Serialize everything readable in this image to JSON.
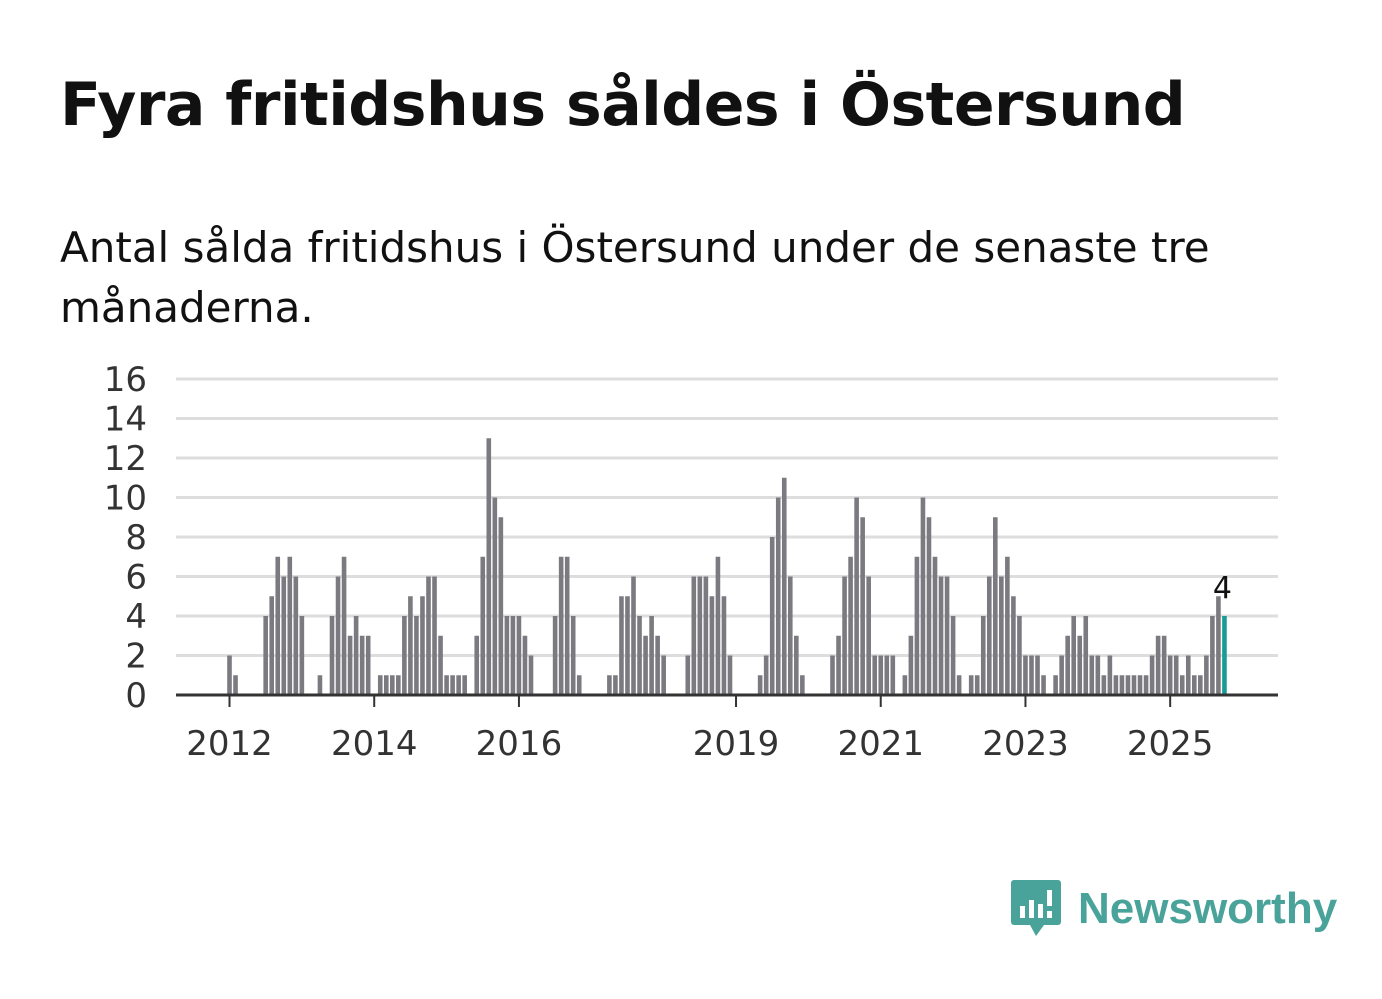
{
  "title": "Fyra fritidshus såldes i Östersund",
  "subtitle": "Antal sålda fritidshus i Östersund under de senaste tre månaderna.",
  "brand": {
    "name": "Newsworthy",
    "color": "#4aa39a"
  },
  "colors": {
    "bar": "#7b7a80",
    "highlight": "#1a9a94",
    "grid": "#dddddd",
    "axis": "#333333"
  },
  "chart_data": {
    "type": "bar",
    "title": "Fyra fritidshus såldes i Östersund",
    "xlabel": "",
    "ylabel": "",
    "ylim": [
      0,
      16
    ],
    "yticks": [
      "0",
      "2",
      "4",
      "6",
      "8",
      "10",
      "12",
      "14",
      "16"
    ],
    "grid": true,
    "start": {
      "year": 2011,
      "month": 3
    },
    "xticks": [
      {
        "label": "2012",
        "index": 9
      },
      {
        "label": "2014",
        "index": 33
      },
      {
        "label": "2016",
        "index": 57
      },
      {
        "label": "2019",
        "index": 93
      },
      {
        "label": "2021",
        "index": 117
      },
      {
        "label": "2023",
        "index": 141
      },
      {
        "label": "2025",
        "index": 165
      }
    ],
    "annotation": {
      "text": "4",
      "index": 174
    },
    "values": [
      0,
      0,
      0,
      0,
      0,
      0,
      0,
      0,
      0,
      2,
      1,
      0,
      0,
      0,
      0,
      4,
      5,
      7,
      6,
      7,
      6,
      4,
      0,
      0,
      1,
      0,
      4,
      6,
      7,
      3,
      4,
      3,
      3,
      0,
      1,
      1,
      1,
      1,
      4,
      5,
      4,
      5,
      6,
      6,
      3,
      1,
      1,
      1,
      1,
      0,
      3,
      7,
      13,
      10,
      9,
      4,
      4,
      4,
      3,
      2,
      0,
      0,
      0,
      4,
      7,
      7,
      4,
      1,
      0,
      0,
      0,
      0,
      1,
      1,
      5,
      5,
      6,
      4,
      3,
      4,
      3,
      2,
      0,
      0,
      0,
      2,
      6,
      6,
      6,
      5,
      7,
      5,
      2,
      0,
      0,
      0,
      0,
      1,
      2,
      8,
      10,
      11,
      6,
      3,
      1,
      0,
      0,
      0,
      0,
      2,
      3,
      6,
      7,
      10,
      9,
      6,
      2,
      2,
      2,
      2,
      0,
      1,
      3,
      7,
      10,
      9,
      7,
      6,
      6,
      4,
      1,
      0,
      1,
      1,
      4,
      6,
      9,
      6,
      7,
      5,
      4,
      2,
      2,
      2,
      1,
      0,
      1,
      2,
      3,
      4,
      3,
      4,
      2,
      2,
      1,
      2,
      1,
      1,
      1,
      1,
      1,
      1,
      2,
      3,
      3,
      2,
      2,
      1,
      2,
      1,
      1,
      2,
      4,
      5,
      4
    ]
  }
}
